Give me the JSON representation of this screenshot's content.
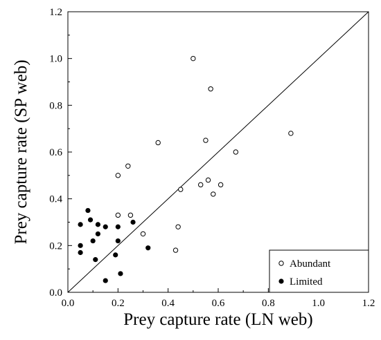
{
  "chart_data": {
    "type": "scatter",
    "title": "",
    "xlabel": "Prey capture rate (LN web)",
    "ylabel": "Prey capture rate (SP web)",
    "xlim": [
      0.0,
      1.2
    ],
    "ylim": [
      0.0,
      1.2
    ],
    "xticks": [
      "0.0",
      "0.2",
      "0.4",
      "0.6",
      "0.8",
      "1.0",
      "1.2"
    ],
    "yticks": [
      "0.0",
      "0.2",
      "0.4",
      "0.6",
      "0.8",
      "1.0",
      "1.2"
    ],
    "grid": false,
    "reference_line": {
      "from": [
        0.0,
        0.0
      ],
      "to": [
        1.2,
        1.2
      ]
    },
    "legend": {
      "position": "bottom-right"
    },
    "series": [
      {
        "name": "Abundant",
        "marker": "open-circle",
        "points": [
          [
            0.5,
            1.0
          ],
          [
            0.57,
            0.87
          ],
          [
            0.89,
            0.68
          ],
          [
            0.36,
            0.64
          ],
          [
            0.55,
            0.65
          ],
          [
            0.67,
            0.6
          ],
          [
            0.24,
            0.54
          ],
          [
            0.2,
            0.5
          ],
          [
            0.56,
            0.48
          ],
          [
            0.53,
            0.46
          ],
          [
            0.61,
            0.46
          ],
          [
            0.45,
            0.44
          ],
          [
            0.58,
            0.42
          ],
          [
            0.2,
            0.33
          ],
          [
            0.25,
            0.33
          ],
          [
            0.44,
            0.28
          ],
          [
            0.3,
            0.25
          ],
          [
            0.43,
            0.18
          ]
        ]
      },
      {
        "name": "Limited",
        "marker": "filled-circle",
        "points": [
          [
            0.08,
            0.35
          ],
          [
            0.09,
            0.31
          ],
          [
            0.05,
            0.29
          ],
          [
            0.12,
            0.29
          ],
          [
            0.15,
            0.28
          ],
          [
            0.2,
            0.28
          ],
          [
            0.26,
            0.3
          ],
          [
            0.12,
            0.25
          ],
          [
            0.1,
            0.22
          ],
          [
            0.2,
            0.22
          ],
          [
            0.05,
            0.2
          ],
          [
            0.32,
            0.19
          ],
          [
            0.05,
            0.17
          ],
          [
            0.19,
            0.16
          ],
          [
            0.11,
            0.14
          ],
          [
            0.21,
            0.08
          ],
          [
            0.15,
            0.05
          ]
        ]
      }
    ]
  }
}
